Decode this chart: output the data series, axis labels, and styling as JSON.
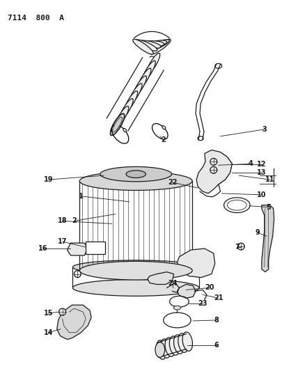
{
  "title": "7114 800 A",
  "bg": "#ffffff",
  "lc": "#1a1a1a",
  "figsize": [
    4.28,
    5.33
  ],
  "dpi": 100
}
